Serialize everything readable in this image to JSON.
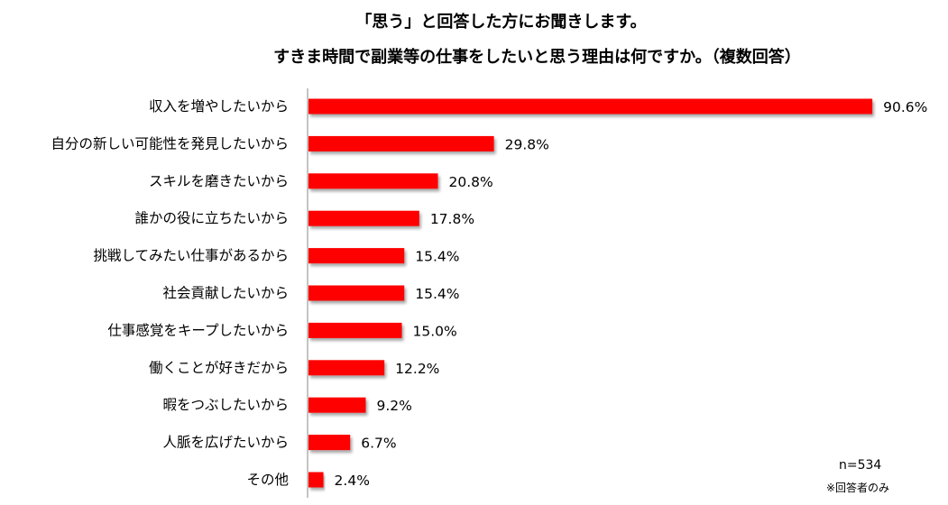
{
  "title_line1": "「思う」と回答した方にお聞きします。",
  "title_line2": "すきま時間で副業等の仕事をしたいと思う理由は何ですか。（複数回答）",
  "n_label": "n=534",
  "footnote": "※回答者のみ",
  "chart_data": {
    "type": "bar",
    "orientation": "horizontal",
    "title": "「思う」と回答した方にお聞きします。 すきま時間で副業等の仕事をしたいと思う理由は何ですか。（複数回答）",
    "categories": [
      "収入を増やしたいから",
      "自分の新しい可能性を発見したいから",
      "スキルを磨きたいから",
      "誰かの役に立ちたいから",
      "挑戦してみたい仕事があるから",
      "社会貢献したいから",
      "仕事感覚をキープしたいから",
      "働くことが好きだから",
      "暇をつぶしたいから",
      "人脈を広げたいから",
      "その他"
    ],
    "values": [
      90.6,
      29.8,
      20.8,
      17.8,
      15.4,
      15.4,
      15.0,
      12.2,
      9.2,
      6.7,
      2.4
    ],
    "value_labels": [
      "90.6%",
      "29.8%",
      "20.8%",
      "17.8%",
      "15.4%",
      "15.4%",
      "15.0%",
      "12.2%",
      "9.2%",
      "6.7%",
      "2.4%"
    ],
    "unit": "%",
    "xlim": [
      0,
      100
    ],
    "bar_color": "#ff0000",
    "grid": false,
    "legend": "none"
  }
}
